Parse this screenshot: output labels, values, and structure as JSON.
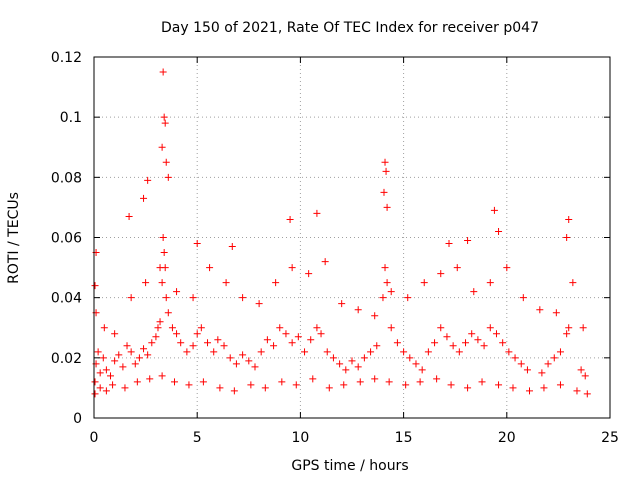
{
  "chart_data": {
    "type": "scatter",
    "title": "Day 150 of 2021, Rate Of TEC Index for receiver p047",
    "xlabel": "GPS time / hours",
    "ylabel": "ROTI / TECUs",
    "xlim": [
      0,
      25
    ],
    "ylim": [
      0,
      0.12
    ],
    "xticks": [
      0,
      5,
      10,
      15,
      20,
      25
    ],
    "yticks": [
      0,
      0.02,
      0.04,
      0.06,
      0.08,
      0.1,
      0.12
    ],
    "xtick_labels": [
      "0",
      "5",
      "10",
      "15",
      "20",
      "25"
    ],
    "ytick_labels": [
      "0",
      "0.02",
      "0.04",
      "0.06",
      "0.08",
      "0.1",
      "0.12"
    ],
    "grid": true,
    "marker": "+",
    "marker_color": "#ff0000",
    "x": [
      0.05,
      0.1,
      0.2,
      0.3,
      0.45,
      0.6,
      0.8,
      1.0,
      1.2,
      1.4,
      1.6,
      1.8,
      2.0,
      2.2,
      2.4,
      2.6,
      2.8,
      3.0,
      3.1,
      3.2,
      3.3,
      3.35,
      3.4,
      3.45,
      3.5,
      3.6,
      3.8,
      4.0,
      4.2,
      4.5,
      4.8,
      5.0,
      5.2,
      5.5,
      5.8,
      6.0,
      6.3,
      6.6,
      6.9,
      7.2,
      7.5,
      7.8,
      8.1,
      8.4,
      8.7,
      9.0,
      9.3,
      9.6,
      9.9,
      10.2,
      10.5,
      10.8,
      11.0,
      11.3,
      11.6,
      11.9,
      12.2,
      12.5,
      12.8,
      13.1,
      13.4,
      13.7,
      14.0,
      14.1,
      14.2,
      14.4,
      14.7,
      15.0,
      15.3,
      15.6,
      15.9,
      16.2,
      16.5,
      16.8,
      17.1,
      17.4,
      17.7,
      18.0,
      18.3,
      18.6,
      18.9,
      19.2,
      19.5,
      19.8,
      20.1,
      20.4,
      20.7,
      21.0,
      21.7,
      22.0,
      22.3,
      22.6,
      22.9,
      23.0,
      23.6,
      23.8,
      0.05,
      0.3,
      0.6,
      0.9,
      1.5,
      2.1,
      2.7,
      3.3,
      3.9,
      4.6,
      5.3,
      6.1,
      6.8,
      7.6,
      8.3,
      9.1,
      9.8,
      10.6,
      11.4,
      12.1,
      12.9,
      13.6,
      14.3,
      15.1,
      15.8,
      16.6,
      17.3,
      18.1,
      18.8,
      19.6,
      20.3,
      21.1,
      21.8,
      22.6,
      23.4,
      23.9,
      0.1,
      0.5,
      1.0,
      1.8,
      2.5,
      3.2,
      4.0,
      4.8,
      5.6,
      6.4,
      7.2,
      8.0,
      8.8,
      9.6,
      10.4,
      11.2,
      12.0,
      12.8,
      13.6,
      14.4,
      15.2,
      16.0,
      16.8,
      17.6,
      18.4,
      19.2,
      20.0,
      20.8,
      21.6,
      22.4,
      23.2,
      23.7,
      3.35,
      3.4,
      3.45,
      3.3,
      3.5,
      3.6,
      2.6,
      2.4,
      1.7,
      14.1,
      14.15,
      14.05,
      14.2,
      10.8,
      9.5,
      19.4,
      19.6,
      23.0,
      22.9,
      0.1,
      0.05,
      5.0,
      6.7,
      17.2,
      18.1
    ],
    "y": [
      0.012,
      0.018,
      0.022,
      0.015,
      0.02,
      0.016,
      0.014,
      0.019,
      0.021,
      0.017,
      0.024,
      0.022,
      0.018,
      0.02,
      0.023,
      0.021,
      0.025,
      0.027,
      0.03,
      0.032,
      0.045,
      0.06,
      0.055,
      0.05,
      0.04,
      0.035,
      0.03,
      0.028,
      0.025,
      0.022,
      0.024,
      0.028,
      0.03,
      0.025,
      0.022,
      0.026,
      0.024,
      0.02,
      0.018,
      0.021,
      0.019,
      0.017,
      0.022,
      0.026,
      0.024,
      0.03,
      0.028,
      0.025,
      0.027,
      0.022,
      0.026,
      0.03,
      0.028,
      0.022,
      0.02,
      0.018,
      0.016,
      0.019,
      0.017,
      0.02,
      0.022,
      0.024,
      0.04,
      0.05,
      0.045,
      0.03,
      0.025,
      0.022,
      0.02,
      0.018,
      0.016,
      0.022,
      0.025,
      0.03,
      0.027,
      0.024,
      0.022,
      0.025,
      0.028,
      0.026,
      0.024,
      0.03,
      0.028,
      0.025,
      0.022,
      0.02,
      0.018,
      0.016,
      0.015,
      0.018,
      0.02,
      0.022,
      0.028,
      0.03,
      0.016,
      0.014,
      0.008,
      0.01,
      0.009,
      0.011,
      0.01,
      0.012,
      0.013,
      0.014,
      0.012,
      0.011,
      0.012,
      0.01,
      0.009,
      0.011,
      0.01,
      0.012,
      0.011,
      0.013,
      0.01,
      0.011,
      0.012,
      0.013,
      0.012,
      0.011,
      0.012,
      0.013,
      0.011,
      0.01,
      0.012,
      0.011,
      0.01,
      0.009,
      0.01,
      0.011,
      0.009,
      0.008,
      0.035,
      0.03,
      0.028,
      0.04,
      0.045,
      0.05,
      0.042,
      0.04,
      0.05,
      0.045,
      0.04,
      0.038,
      0.045,
      0.05,
      0.048,
      0.052,
      0.038,
      0.036,
      0.034,
      0.042,
      0.04,
      0.045,
      0.048,
      0.05,
      0.042,
      0.045,
      0.05,
      0.04,
      0.036,
      0.035,
      0.045,
      0.03,
      0.115,
      0.1,
      0.098,
      0.09,
      0.085,
      0.08,
      0.079,
      0.073,
      0.067,
      0.085,
      0.082,
      0.075,
      0.07,
      0.068,
      0.066,
      0.069,
      0.062,
      0.066,
      0.06,
      0.055,
      0.044,
      0.058,
      0.057,
      0.058,
      0.059
    ]
  }
}
